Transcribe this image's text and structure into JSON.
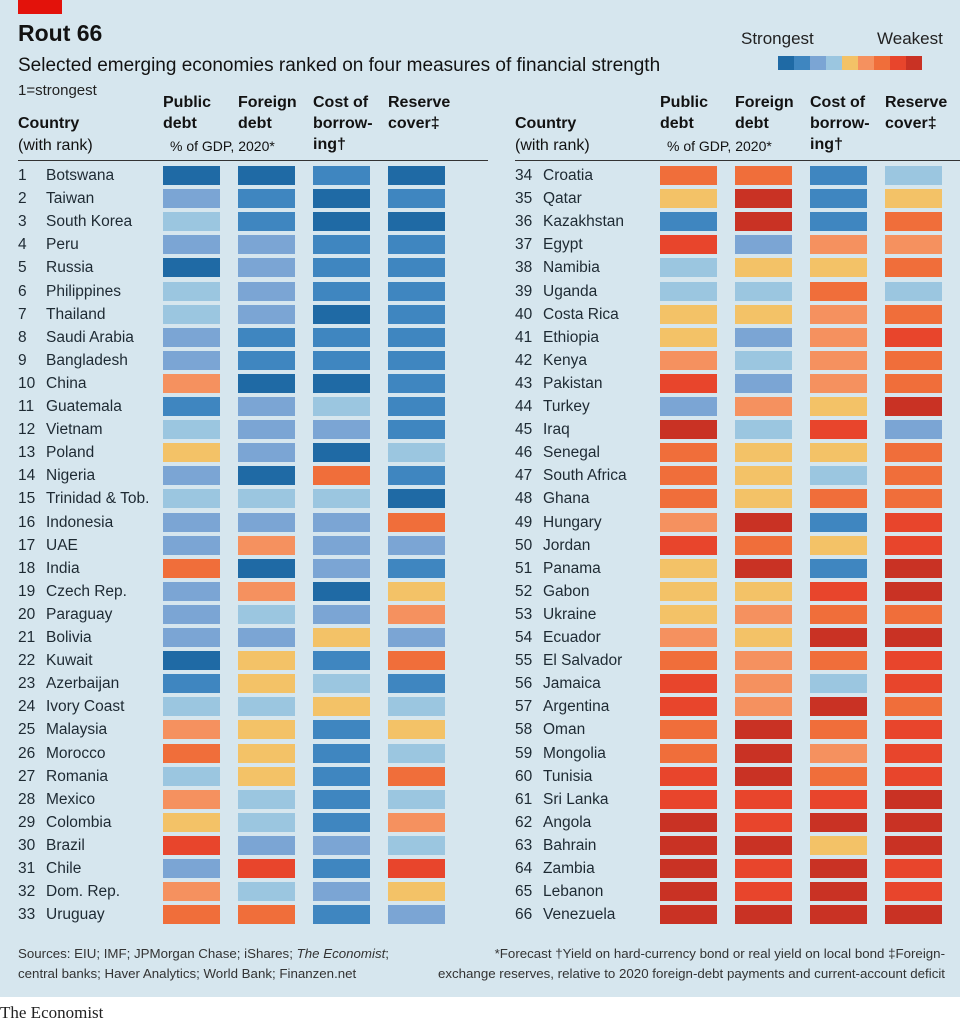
{
  "title": "Rout 66",
  "subtitle": "Selected emerging economies ranked on four measures of financial strength",
  "note": "1=strongest",
  "scale": {
    "strongest_label": "Strongest",
    "weakest_label": "Weakest",
    "colors": [
      "#1f6aa5",
      "#3f86c0",
      "#7ba5d4",
      "#9bc6e0",
      "#f3c267",
      "#f5915f",
      "#f06e3a",
      "#e8452c",
      "#c93224"
    ]
  },
  "headers": {
    "country": "Country",
    "with_rank": "(with rank)",
    "public_debt": [
      "Public",
      "debt"
    ],
    "foreign_debt": [
      "Foreign",
      "debt"
    ],
    "cost_of_borrowing": [
      "Cost of",
      "borrow-",
      "ing†"
    ],
    "reserve_cover": [
      "Reserve",
      "cover‡"
    ],
    "gdp_note": "% of GDP, 2020*"
  },
  "footer": {
    "sources_1": "Sources: EIU; IMF; JPMorgan Chase; iShares;",
    "sources_italic": "The Economist",
    "sources_1_end": ";",
    "sources_2": "central banks; Haver Analytics; World Bank; Finanzen.net",
    "notes_1": "*Forecast   †Yield on hard-currency bond or real yield on local bond   ‡Foreign-",
    "notes_2": "exchange reserves, relative to 2020 foreign-debt payments and current-account deficit",
    "publisher": "The Economist"
  },
  "chart_data": {
    "type": "heatmap",
    "title": "Rout 66",
    "subtitle": "Selected emerging economies ranked on four measures of financial strength",
    "scale_note": "Colour scale from Strongest (dark blue, 1) to Weakest (dark red, 9)",
    "columns": [
      "Public debt",
      "Foreign debt",
      "Cost of borrowing",
      "Reserve cover"
    ],
    "countries": [
      {
        "rank": 1,
        "name": "Botswana",
        "v": [
          1,
          1,
          2,
          1
        ]
      },
      {
        "rank": 2,
        "name": "Taiwan",
        "v": [
          3,
          2,
          1,
          2
        ]
      },
      {
        "rank": 3,
        "name": "South Korea",
        "v": [
          4,
          2,
          1,
          1
        ]
      },
      {
        "rank": 4,
        "name": "Peru",
        "v": [
          3,
          3,
          2,
          2
        ]
      },
      {
        "rank": 5,
        "name": "Russia",
        "v": [
          1,
          3,
          2,
          2
        ]
      },
      {
        "rank": 6,
        "name": "Philippines",
        "v": [
          4,
          3,
          2,
          2
        ]
      },
      {
        "rank": 7,
        "name": "Thailand",
        "v": [
          4,
          3,
          1,
          2
        ]
      },
      {
        "rank": 8,
        "name": "Saudi Arabia",
        "v": [
          3,
          2,
          2,
          2
        ]
      },
      {
        "rank": 9,
        "name": "Bangladesh",
        "v": [
          3,
          2,
          2,
          2
        ]
      },
      {
        "rank": 10,
        "name": "China",
        "v": [
          6,
          1,
          1,
          2
        ]
      },
      {
        "rank": 11,
        "name": "Guatemala",
        "v": [
          2,
          3,
          4,
          2
        ]
      },
      {
        "rank": 12,
        "name": "Vietnam",
        "v": [
          4,
          3,
          3,
          2
        ]
      },
      {
        "rank": 13,
        "name": "Poland",
        "v": [
          5,
          3,
          1,
          4
        ]
      },
      {
        "rank": 14,
        "name": "Nigeria",
        "v": [
          3,
          1,
          7,
          2
        ]
      },
      {
        "rank": 15,
        "name": "Trinidad & Tob.",
        "v": [
          4,
          4,
          4,
          1
        ]
      },
      {
        "rank": 16,
        "name": "Indonesia",
        "v": [
          3,
          3,
          3,
          7
        ]
      },
      {
        "rank": 17,
        "name": "UAE",
        "v": [
          3,
          6,
          3,
          3
        ]
      },
      {
        "rank": 18,
        "name": "India",
        "v": [
          7,
          1,
          3,
          2
        ]
      },
      {
        "rank": 19,
        "name": "Czech Rep.",
        "v": [
          3,
          6,
          1,
          5
        ]
      },
      {
        "rank": 20,
        "name": "Paraguay",
        "v": [
          3,
          4,
          3,
          6
        ]
      },
      {
        "rank": 21,
        "name": "Bolivia",
        "v": [
          3,
          3,
          5,
          3
        ]
      },
      {
        "rank": 22,
        "name": "Kuwait",
        "v": [
          1,
          5,
          2,
          7
        ]
      },
      {
        "rank": 23,
        "name": "Azerbaijan",
        "v": [
          2,
          5,
          4,
          2
        ]
      },
      {
        "rank": 24,
        "name": "Ivory Coast",
        "v": [
          4,
          4,
          5,
          4
        ]
      },
      {
        "rank": 25,
        "name": "Malaysia",
        "v": [
          6,
          5,
          2,
          5
        ]
      },
      {
        "rank": 26,
        "name": "Morocco",
        "v": [
          7,
          5,
          2,
          4
        ]
      },
      {
        "rank": 27,
        "name": "Romania",
        "v": [
          4,
          5,
          2,
          7
        ]
      },
      {
        "rank": 28,
        "name": "Mexico",
        "v": [
          6,
          4,
          2,
          4
        ]
      },
      {
        "rank": 29,
        "name": "Colombia",
        "v": [
          5,
          4,
          2,
          6
        ]
      },
      {
        "rank": 30,
        "name": "Brazil",
        "v": [
          8,
          3,
          3,
          4
        ]
      },
      {
        "rank": 31,
        "name": "Chile",
        "v": [
          3,
          8,
          2,
          8
        ]
      },
      {
        "rank": 32,
        "name": "Dom. Rep.",
        "v": [
          6,
          4,
          3,
          5
        ]
      },
      {
        "rank": 33,
        "name": "Uruguay",
        "v": [
          7,
          7,
          2,
          3
        ]
      },
      {
        "rank": 34,
        "name": "Croatia",
        "v": [
          7,
          7,
          2,
          4
        ]
      },
      {
        "rank": 35,
        "name": "Qatar",
        "v": [
          5,
          9,
          2,
          5
        ]
      },
      {
        "rank": 36,
        "name": "Kazakhstan",
        "v": [
          2,
          9,
          2,
          7
        ]
      },
      {
        "rank": 37,
        "name": "Egypt",
        "v": [
          8,
          3,
          6,
          6
        ]
      },
      {
        "rank": 38,
        "name": "Namibia",
        "v": [
          4,
          5,
          5,
          7
        ]
      },
      {
        "rank": 39,
        "name": "Uganda",
        "v": [
          4,
          4,
          7,
          4
        ]
      },
      {
        "rank": 40,
        "name": "Costa Rica",
        "v": [
          5,
          5,
          6,
          7
        ]
      },
      {
        "rank": 41,
        "name": "Ethiopia",
        "v": [
          5,
          3,
          6,
          8
        ]
      },
      {
        "rank": 42,
        "name": "Kenya",
        "v": [
          6,
          4,
          6,
          7
        ]
      },
      {
        "rank": 43,
        "name": "Pakistan",
        "v": [
          8,
          3,
          6,
          7
        ]
      },
      {
        "rank": 44,
        "name": "Turkey",
        "v": [
          3,
          6,
          5,
          9
        ]
      },
      {
        "rank": 45,
        "name": "Iraq",
        "v": [
          9,
          4,
          8,
          3
        ]
      },
      {
        "rank": 46,
        "name": "Senegal",
        "v": [
          7,
          5,
          5,
          7
        ]
      },
      {
        "rank": 47,
        "name": "South Africa",
        "v": [
          7,
          5,
          4,
          7
        ]
      },
      {
        "rank": 48,
        "name": "Ghana",
        "v": [
          7,
          5,
          7,
          7
        ]
      },
      {
        "rank": 49,
        "name": "Hungary",
        "v": [
          6,
          9,
          2,
          8
        ]
      },
      {
        "rank": 50,
        "name": "Jordan",
        "v": [
          8,
          7,
          5,
          8
        ]
      },
      {
        "rank": 51,
        "name": "Panama",
        "v": [
          5,
          9,
          2,
          9
        ]
      },
      {
        "rank": 52,
        "name": "Gabon",
        "v": [
          5,
          5,
          8,
          9
        ]
      },
      {
        "rank": 53,
        "name": "Ukraine",
        "v": [
          5,
          6,
          7,
          7
        ]
      },
      {
        "rank": 54,
        "name": "Ecuador",
        "v": [
          6,
          5,
          9,
          9
        ]
      },
      {
        "rank": 55,
        "name": "El Salvador",
        "v": [
          7,
          6,
          7,
          8
        ]
      },
      {
        "rank": 56,
        "name": "Jamaica",
        "v": [
          8,
          6,
          4,
          8
        ]
      },
      {
        "rank": 57,
        "name": "Argentina",
        "v": [
          8,
          6,
          9,
          7
        ]
      },
      {
        "rank": 58,
        "name": "Oman",
        "v": [
          7,
          9,
          7,
          8
        ]
      },
      {
        "rank": 59,
        "name": "Mongolia",
        "v": [
          7,
          9,
          6,
          8
        ]
      },
      {
        "rank": 60,
        "name": "Tunisia",
        "v": [
          8,
          9,
          7,
          8
        ]
      },
      {
        "rank": 61,
        "name": "Sri Lanka",
        "v": [
          8,
          8,
          8,
          9
        ]
      },
      {
        "rank": 62,
        "name": "Angola",
        "v": [
          9,
          8,
          9,
          9
        ]
      },
      {
        "rank": 63,
        "name": "Bahrain",
        "v": [
          9,
          9,
          5,
          9
        ]
      },
      {
        "rank": 64,
        "name": "Zambia",
        "v": [
          9,
          8,
          9,
          8
        ]
      },
      {
        "rank": 65,
        "name": "Lebanon",
        "v": [
          9,
          8,
          9,
          8
        ]
      },
      {
        "rank": 66,
        "name": "Venezuela",
        "v": [
          9,
          9,
          9,
          9
        ]
      }
    ]
  }
}
